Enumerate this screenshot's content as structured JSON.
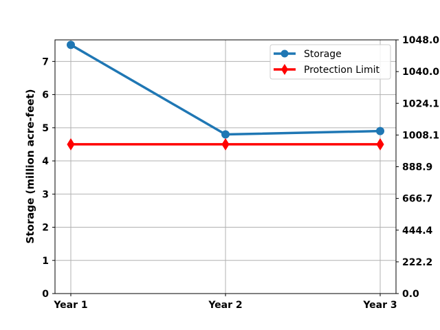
{
  "chart_data": {
    "type": "line",
    "categories": [
      "Year 1",
      "Year 2",
      "Year 3"
    ],
    "series": [
      {
        "name": "Storage",
        "values": [
          7.5,
          4.8,
          4.9
        ],
        "color": "#1f77b4",
        "marker": "circle"
      },
      {
        "name": "Protection Limit",
        "values": [
          4.5,
          4.5,
          4.5
        ],
        "color": "#ff0000",
        "marker": "diamond"
      }
    ],
    "ylabel": "Storage (million acre-feet)",
    "ylim": [
      0,
      7.65
    ],
    "yticks": [
      0,
      1,
      2,
      3,
      4,
      5,
      6,
      7
    ],
    "y2_tick_labels": [
      "0.0",
      "222.2",
      "444.4",
      "666.7",
      "888.9",
      "1008.1",
      "1024.1",
      "1040.0",
      "1048.0"
    ],
    "grid": true,
    "legend_position": "top-right"
  }
}
